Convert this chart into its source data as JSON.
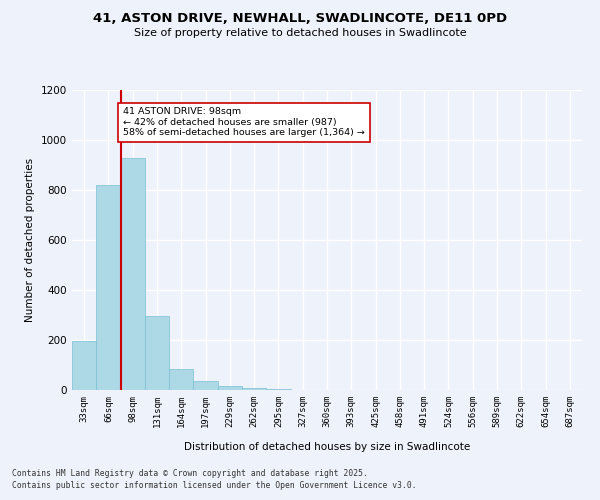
{
  "title_line1": "41, ASTON DRIVE, NEWHALL, SWADLINCOTE, DE11 0PD",
  "title_line2": "Size of property relative to detached houses in Swadlincote",
  "xlabel": "Distribution of detached houses by size in Swadlincote",
  "ylabel": "Number of detached properties",
  "categories": [
    "33sqm",
    "66sqm",
    "98sqm",
    "131sqm",
    "164sqm",
    "197sqm",
    "229sqm",
    "262sqm",
    "295sqm",
    "327sqm",
    "360sqm",
    "393sqm",
    "425sqm",
    "458sqm",
    "491sqm",
    "524sqm",
    "556sqm",
    "589sqm",
    "622sqm",
    "654sqm",
    "687sqm"
  ],
  "values": [
    197,
    820,
    930,
    298,
    85,
    35,
    18,
    10,
    5,
    0,
    0,
    0,
    0,
    0,
    0,
    0,
    0,
    0,
    0,
    0,
    0
  ],
  "bar_color": "#add8e6",
  "bar_edge_color": "#7bbfd4",
  "vline_color": "#cc0000",
  "annotation_text": "41 ASTON DRIVE: 98sqm\n← 42% of detached houses are smaller (987)\n58% of semi-detached houses are larger (1,364) →",
  "annotation_box_color": "#ffffff",
  "annotation_box_edge": "#cc0000",
  "ylim": [
    0,
    1200
  ],
  "yticks": [
    0,
    200,
    400,
    600,
    800,
    1000,
    1200
  ],
  "background_color": "#eef2fa",
  "grid_color": "#ffffff",
  "footer_line1": "Contains HM Land Registry data © Crown copyright and database right 2025.",
  "footer_line2": "Contains public sector information licensed under the Open Government Licence v3.0."
}
